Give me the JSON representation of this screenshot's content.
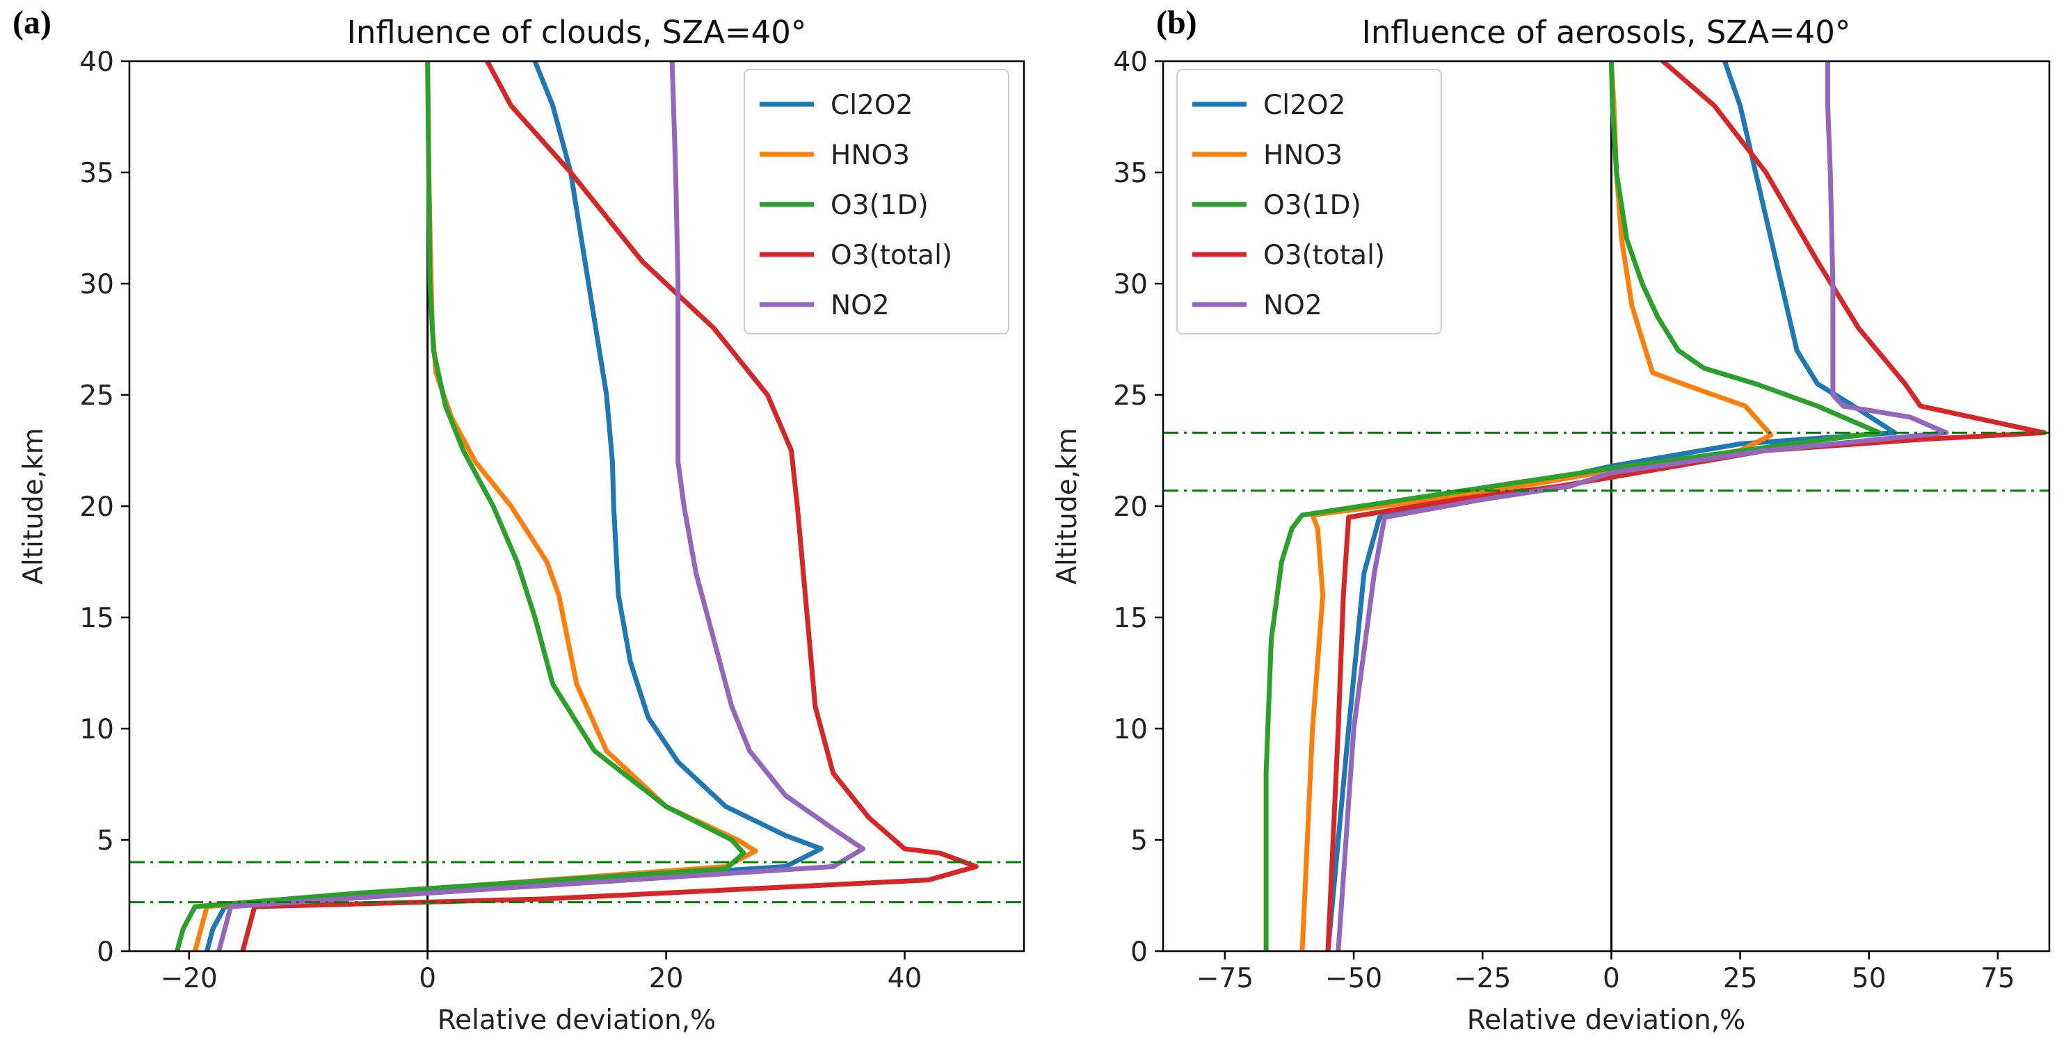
{
  "colors": {
    "Cl2O2": "#1f77b4",
    "HNO3": "#ff7f0e",
    "O3(1D)": "#2ca02c",
    "O3(total)": "#d62728",
    "NO2": "#9467bd",
    "ref_line": "#008000",
    "zero_line": "#000000"
  },
  "chart_data": [
    {
      "type": "line",
      "panel_label": "(a)",
      "title": "Influence of clouds, SZA=40°",
      "xlabel": "Relative deviation,%",
      "ylabel": "Altitude,km",
      "xlim": [
        -25,
        50
      ],
      "ylim": [
        0,
        40
      ],
      "xticks": [
        -20,
        0,
        20,
        40
      ],
      "xtick_labels": [
        "−20",
        "0",
        "20",
        "40"
      ],
      "yticks": [
        0,
        5,
        10,
        15,
        20,
        25,
        30,
        35,
        40
      ],
      "ytick_labels": [
        "0",
        "5",
        "10",
        "15",
        "20",
        "25",
        "30",
        "35",
        "40"
      ],
      "legend_position": "top-right",
      "hlines": [
        4.0,
        2.2
      ],
      "vline": 0,
      "series": [
        {
          "name": "Cl2O2",
          "points": [
            [
              -18.5,
              0
            ],
            [
              -18,
              1
            ],
            [
              -17,
              2
            ],
            [
              -5,
              2.6
            ],
            [
              30,
              3.8
            ],
            [
              33,
              4.6
            ],
            [
              30,
              5.2
            ],
            [
              25,
              6.5
            ],
            [
              21,
              8.5
            ],
            [
              18.5,
              10.5
            ],
            [
              17,
              13
            ],
            [
              16,
              16
            ],
            [
              15.6,
              20
            ],
            [
              15.5,
              22
            ],
            [
              15,
              25
            ],
            [
              13.5,
              30
            ],
            [
              12,
              35
            ],
            [
              10.5,
              38
            ],
            [
              9,
              40
            ]
          ]
        },
        {
          "name": "HNO3",
          "points": [
            [
              -19.5,
              0
            ],
            [
              -19,
              1
            ],
            [
              -18.5,
              2
            ],
            [
              -5,
              2.6
            ],
            [
              25,
              3.8
            ],
            [
              27.5,
              4.5
            ],
            [
              26,
              5
            ],
            [
              20,
              6.5
            ],
            [
              15,
              9
            ],
            [
              12.5,
              12
            ],
            [
              11,
              16
            ],
            [
              10,
              17.5
            ],
            [
              7,
              20
            ],
            [
              4,
              22
            ],
            [
              2,
              24
            ],
            [
              0.7,
              26
            ],
            [
              0.4,
              28
            ],
            [
              0.3,
              30
            ],
            [
              0.1,
              35
            ],
            [
              0,
              40
            ]
          ]
        },
        {
          "name": "O3(1D)",
          "points": [
            [
              -21,
              0
            ],
            [
              -20.5,
              1
            ],
            [
              -19.5,
              2
            ],
            [
              -6,
              2.6
            ],
            [
              25,
              3.7
            ],
            [
              26.5,
              4.4
            ],
            [
              25.5,
              5
            ],
            [
              20,
              6.5
            ],
            [
              14,
              9
            ],
            [
              10.5,
              12
            ],
            [
              9,
              15
            ],
            [
              7.5,
              17.5
            ],
            [
              5.5,
              20
            ],
            [
              3,
              22.5
            ],
            [
              1.5,
              24.5
            ],
            [
              0.5,
              27
            ],
            [
              0.2,
              30
            ],
            [
              0.1,
              35
            ],
            [
              0,
              40
            ]
          ]
        },
        {
          "name": "O3(total)",
          "points": [
            [
              -15.5,
              0
            ],
            [
              -15,
              1
            ],
            [
              -14.5,
              2
            ],
            [
              10,
              2.35
            ],
            [
              42,
              3.2
            ],
            [
              46,
              3.8
            ],
            [
              43,
              4.4
            ],
            [
              40,
              4.6
            ],
            [
              37,
              6
            ],
            [
              34,
              8
            ],
            [
              32.5,
              11
            ],
            [
              32,
              14
            ],
            [
              31.5,
              17
            ],
            [
              31,
              20
            ],
            [
              30.5,
              22.5
            ],
            [
              28.5,
              25
            ],
            [
              24,
              28
            ],
            [
              18,
              31
            ],
            [
              12,
              35
            ],
            [
              7,
              38
            ],
            [
              6,
              39
            ],
            [
              5,
              40
            ]
          ]
        },
        {
          "name": "NO2",
          "points": [
            [
              -17.5,
              0
            ],
            [
              -17,
              1
            ],
            [
              -16.5,
              2
            ],
            [
              -3,
              2.5
            ],
            [
              34,
              3.8
            ],
            [
              36.5,
              4.6
            ],
            [
              34,
              5.5
            ],
            [
              30,
              7
            ],
            [
              27,
              9
            ],
            [
              25.5,
              11
            ],
            [
              24,
              14
            ],
            [
              22.5,
              17
            ],
            [
              21.5,
              20
            ],
            [
              21,
              22
            ],
            [
              21,
              25
            ],
            [
              21,
              30
            ],
            [
              20.8,
              35
            ],
            [
              20.5,
              40
            ]
          ]
        }
      ]
    },
    {
      "type": "line",
      "panel_label": "(b)",
      "title": "Influence of aerosols, SZA=40°",
      "xlabel": "Relative deviation,%",
      "ylabel": "Altitude,km",
      "xlim": [
        -87,
        85
      ],
      "ylim": [
        0,
        40
      ],
      "xticks": [
        -75,
        -50,
        -25,
        0,
        25,
        50,
        75
      ],
      "xtick_labels": [
        "−75",
        "−50",
        "−25",
        "0",
        "25",
        "50",
        "75"
      ],
      "yticks": [
        0,
        5,
        10,
        15,
        20,
        25,
        30,
        35,
        40
      ],
      "ytick_labels": [
        "0",
        "5",
        "10",
        "15",
        "20",
        "25",
        "30",
        "35",
        "40"
      ],
      "legend_position": "top-left",
      "hlines": [
        23.3,
        20.7
      ],
      "vline": 0,
      "series": [
        {
          "name": "Cl2O2",
          "points": [
            [
              -55,
              0
            ],
            [
              -51,
              10
            ],
            [
              -48,
              17
            ],
            [
              -45,
              19.5
            ],
            [
              -25,
              20.5
            ],
            [
              0,
              21.8
            ],
            [
              25,
              22.8
            ],
            [
              55,
              23.3
            ],
            [
              47,
              24.5
            ],
            [
              40,
              25.5
            ],
            [
              36,
              27
            ],
            [
              32,
              31
            ],
            [
              28,
              35
            ],
            [
              25,
              38
            ],
            [
              22,
              40
            ]
          ]
        },
        {
          "name": "HNO3",
          "points": [
            [
              -60,
              0
            ],
            [
              -58,
              10
            ],
            [
              -56,
              16
            ],
            [
              -57,
              19
            ],
            [
              -58,
              19.6
            ],
            [
              -35,
              20.3
            ],
            [
              -15,
              21
            ],
            [
              0,
              21.6
            ],
            [
              25,
              22.5
            ],
            [
              31,
              23.2
            ],
            [
              26,
              24.5
            ],
            [
              15,
              25.4
            ],
            [
              8,
              26
            ],
            [
              6,
              27.5
            ],
            [
              4,
              29
            ],
            [
              2,
              32
            ],
            [
              1,
              35
            ],
            [
              0.5,
              38
            ],
            [
              0,
              40
            ]
          ]
        },
        {
          "name": "O3(1D)",
          "points": [
            [
              -67,
              0
            ],
            [
              -67,
              8
            ],
            [
              -66,
              14
            ],
            [
              -64,
              17.5
            ],
            [
              -62,
              19
            ],
            [
              -60,
              19.6
            ],
            [
              -40,
              20.3
            ],
            [
              -20,
              21
            ],
            [
              0,
              21.7
            ],
            [
              35,
              22.8
            ],
            [
              52,
              23.3
            ],
            [
              40,
              24.5
            ],
            [
              28,
              25.5
            ],
            [
              18,
              26.2
            ],
            [
              13,
              27
            ],
            [
              9,
              28.5
            ],
            [
              6,
              30
            ],
            [
              3,
              32
            ],
            [
              1,
              35
            ],
            [
              0.2,
              38
            ],
            [
              0,
              40
            ]
          ]
        },
        {
          "name": "O3(total)",
          "points": [
            [
              -55,
              0
            ],
            [
              -53,
              10
            ],
            [
              -52,
              16
            ],
            [
              -51,
              19.5
            ],
            [
              -30,
              20.3
            ],
            [
              -10,
              20.9
            ],
            [
              0,
              21.3
            ],
            [
              30,
              22.5
            ],
            [
              60,
              23
            ],
            [
              84,
              23.3
            ],
            [
              60,
              24.5
            ],
            [
              57,
              25.5
            ],
            [
              48,
              28
            ],
            [
              40,
              31
            ],
            [
              30,
              35
            ],
            [
              20,
              38
            ],
            [
              15,
              39
            ],
            [
              10,
              40
            ]
          ]
        },
        {
          "name": "NO2",
          "points": [
            [
              -53,
              0
            ],
            [
              -50,
              10
            ],
            [
              -46,
              17
            ],
            [
              -44,
              19.5
            ],
            [
              -25,
              20.3
            ],
            [
              -8,
              20.9
            ],
            [
              0,
              21.5
            ],
            [
              30,
              22.5
            ],
            [
              65,
              23.3
            ],
            [
              58,
              24
            ],
            [
              45,
              24.5
            ],
            [
              43,
              25
            ],
            [
              43,
              30
            ],
            [
              42.5,
              35
            ],
            [
              42,
              38
            ],
            [
              42,
              40
            ]
          ]
        }
      ]
    }
  ]
}
